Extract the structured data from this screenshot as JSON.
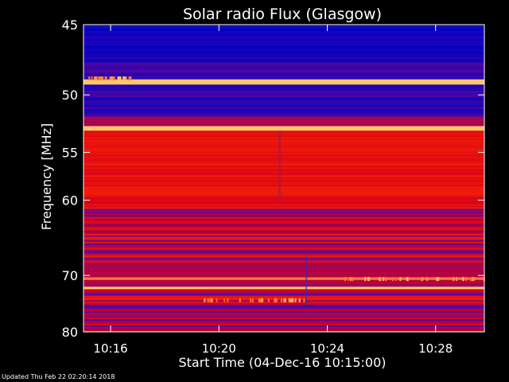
{
  "chart_data": {
    "type": "heatmap",
    "title": "Solar radio Flux (Glasgow)",
    "xlabel": "Start Time (04-Dec-16 10:15:00)",
    "ylabel": "Frequency [MHz]",
    "x_tick_labels": [
      "10:16",
      "10:20",
      "10:24",
      "10:28"
    ],
    "x_tick_minutes": [
      1,
      5,
      9,
      13
    ],
    "x_range_minutes": [
      0,
      14.8
    ],
    "ylim": [
      45,
      80
    ],
    "y_tick_values": [
      45,
      50,
      55,
      60,
      70,
      80
    ],
    "y_scale": "reciprocal",
    "colormap": [
      "#000033",
      "#0000c8",
      "#7a0a8a",
      "#d4001a",
      "#ff2a00",
      "#ffcf70"
    ],
    "bands": [
      {
        "f_from": 45.0,
        "f_to": 47.5,
        "level": "low"
      },
      {
        "f_from": 47.5,
        "f_to": 48.8,
        "level": "low-mid"
      },
      {
        "f_from": 48.8,
        "f_to": 49.2,
        "level": "saturated"
      },
      {
        "f_from": 49.2,
        "f_to": 51.8,
        "level": "low-mid"
      },
      {
        "f_from": 51.8,
        "f_to": 52.6,
        "level": "mid"
      },
      {
        "f_from": 52.6,
        "f_to": 53.0,
        "level": "saturated"
      },
      {
        "f_from": 53.0,
        "f_to": 61.0,
        "level": "high"
      },
      {
        "f_from": 61.0,
        "f_to": 68.0,
        "level": "mixed"
      },
      {
        "f_from": 68.0,
        "f_to": 70.3,
        "level": "mid"
      },
      {
        "f_from": 70.3,
        "f_to": 70.7,
        "level": "hot"
      },
      {
        "f_from": 70.7,
        "f_to": 71.8,
        "level": "mid"
      },
      {
        "f_from": 71.8,
        "f_to": 72.2,
        "level": "saturated"
      },
      {
        "f_from": 72.2,
        "f_to": 80.0,
        "level": "mixed"
      }
    ],
    "vertical_events_minutes": [
      7.2,
      8.2
    ]
  },
  "footer": {
    "updated_text": "Updated Thu Feb 22 02:20:14 2018"
  }
}
